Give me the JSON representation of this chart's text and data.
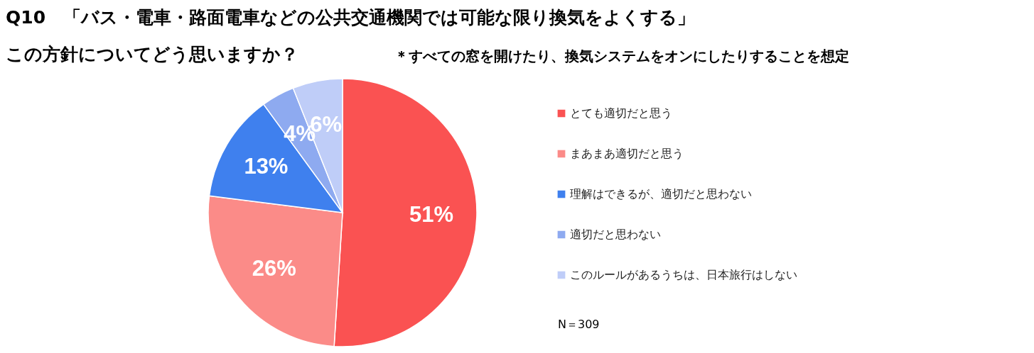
{
  "chart_data": {
    "type": "pie",
    "title": "Q10　「バス・電車・路面電車などの公共交通機関では可能な限り換気をよくする」",
    "subtitle": "この方針についてどう思いますか？",
    "annotations": [
      "＊すべての窓を開けたり、換気システムをオンにしたりすることを想定",
      "N＝309"
    ],
    "categories": [
      "とても適切だと思う",
      "まあまあ適切だと思う",
      "理解はできるが、適切だと思わない",
      "適切だと思わない",
      "このルールがあるうちは、日本旅行はしない"
    ],
    "values": [
      51,
      26,
      13,
      4,
      6
    ],
    "value_labels": [
      "51%",
      "26%",
      "13%",
      "4%",
      "6%"
    ],
    "colors": [
      "#fa5252",
      "#fb8b88",
      "#3f80ee",
      "#8eaaf0",
      "#bfcdf8"
    ],
    "legend": "right"
  }
}
